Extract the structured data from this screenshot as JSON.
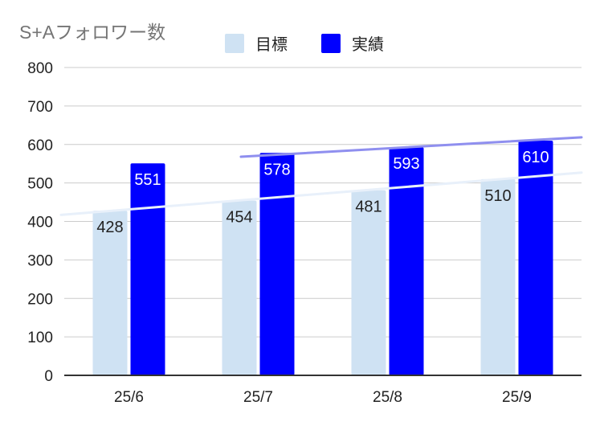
{
  "chart_data": {
    "type": "bar",
    "title": "S+Aフォロワー数",
    "categories": [
      "25/6",
      "25/7",
      "25/8",
      "25/9"
    ],
    "series": [
      {
        "name": "目標",
        "values": [
          428,
          454,
          481,
          510
        ],
        "color": "#cfe2f3",
        "label_color": "#222222"
      },
      {
        "name": "実績",
        "values": [
          551,
          578,
          593,
          610
        ],
        "color": "#0000ff",
        "label_color": "#ffffff"
      }
    ],
    "yticks": [
      "0",
      "100",
      "200",
      "300",
      "400",
      "500",
      "600",
      "700",
      "800"
    ],
    "ylim": [
      0,
      800
    ],
    "grid": true,
    "legend_position": "top",
    "trendlines": [
      {
        "series": "目標",
        "color": "#e8f0fa"
      },
      {
        "series": "実績",
        "color": "#8f8fef"
      }
    ]
  }
}
